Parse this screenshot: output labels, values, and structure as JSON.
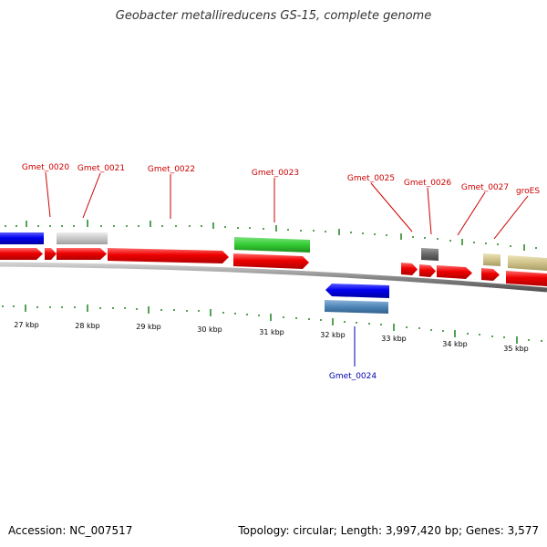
{
  "title": "Geobacter metallireducens GS-15, complete genome",
  "footer": {
    "accession": "Accession: NC_007517",
    "summary": "Topology: circular; Length: 3,997,420 bp; Genes: 3,577"
  },
  "colors": {
    "cds": "#ee0000",
    "backbone": "#888888",
    "ticks": "#2a8a2a",
    "label_top": "#cc0000",
    "label_bottom": "#0000aa",
    "gene_blue": "#0000ee",
    "gene_lightgray": "#c8c8c8",
    "gene_green": "#33cc33",
    "gene_darkgray": "#666666",
    "gene_khaki": "#cfc38a",
    "gene_steelblue": "#4f86b8"
  },
  "scale_labels": [
    "27 kbp",
    "28 kbp",
    "29 kbp",
    "30 kbp",
    "31 kbp",
    "32 kbp",
    "33 kbp",
    "34 kbp",
    "35 kbp"
  ],
  "gene_labels_top": [
    "Gmet_0020",
    "Gmet_0021",
    "Gmet_0022",
    "Gmet_0023",
    "Gmet_0025",
    "Gmet_0026",
    "Gmet_0027",
    "groES"
  ],
  "gene_labels_bottom": [
    "Gmet_0024"
  ]
}
